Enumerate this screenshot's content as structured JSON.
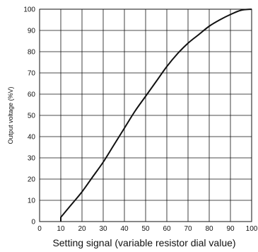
{
  "chart_data": {
    "type": "line",
    "title": "",
    "xlabel": "Setting signal (variable resistor dial value)",
    "ylabel": "Output voltage (%V)",
    "xlim": [
      0,
      100
    ],
    "ylim": [
      0,
      100
    ],
    "x_ticks": [
      "0",
      "10",
      "20",
      "30",
      "40",
      "50",
      "60",
      "70",
      "80",
      "90",
      "100"
    ],
    "y_ticks": [
      "0",
      "10",
      "20",
      "30",
      "40",
      "50",
      "60",
      "70",
      "80",
      "90",
      "100"
    ],
    "grid": true,
    "legend": "none",
    "series": [
      {
        "color": "#111111",
        "x": [
          10,
          10,
          15,
          20,
          25,
          30,
          35,
          40,
          45,
          50,
          55,
          60,
          65,
          70,
          75,
          80,
          85,
          90,
          95,
          100
        ],
        "y": [
          0,
          2,
          8,
          14,
          21,
          28,
          36,
          44,
          52,
          59,
          66,
          73,
          79,
          84,
          88,
          92,
          95,
          97.5,
          99.5,
          100
        ]
      }
    ]
  }
}
